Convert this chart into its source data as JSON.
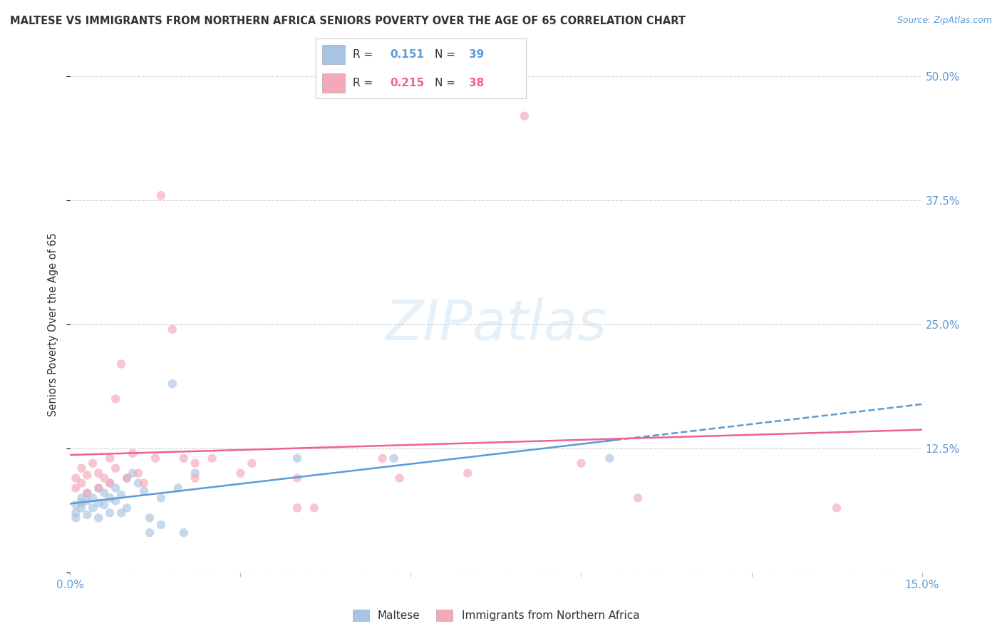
{
  "title": "MALTESE VS IMMIGRANTS FROM NORTHERN AFRICA SENIORS POVERTY OVER THE AGE OF 65 CORRELATION CHART",
  "source": "Source: ZipAtlas.com",
  "ylabel": "Seniors Poverty Over the Age of 65",
  "xlim": [
    0.0,
    0.15
  ],
  "ylim": [
    0.0,
    0.5
  ],
  "xticks": [
    0.0,
    0.03,
    0.06,
    0.09,
    0.12,
    0.15
  ],
  "xticklabels": [
    "0.0%",
    "",
    "",
    "",
    "",
    "15.0%"
  ],
  "yticks_right": [
    0.0,
    0.125,
    0.25,
    0.375,
    0.5
  ],
  "yticklabels_right": [
    "",
    "12.5%",
    "25.0%",
    "37.5%",
    "50.0%"
  ],
  "bottom_legend": [
    "Maltese",
    "Immigrants from Northern Africa"
  ],
  "bottom_legend_colors": [
    "#a8c4e0",
    "#f4a8b8"
  ],
  "watermark": "ZIPatlas",
  "background_color": "#ffffff",
  "grid_color": "#d0d0d0",
  "maltese_scatter": [
    [
      0.001,
      0.06
    ],
    [
      0.001,
      0.068
    ],
    [
      0.001,
      0.055
    ],
    [
      0.002,
      0.075
    ],
    [
      0.002,
      0.07
    ],
    [
      0.002,
      0.065
    ],
    [
      0.003,
      0.08
    ],
    [
      0.003,
      0.072
    ],
    [
      0.003,
      0.058
    ],
    [
      0.004,
      0.075
    ],
    [
      0.004,
      0.065
    ],
    [
      0.005,
      0.085
    ],
    [
      0.005,
      0.07
    ],
    [
      0.005,
      0.055
    ],
    [
      0.006,
      0.08
    ],
    [
      0.006,
      0.068
    ],
    [
      0.007,
      0.09
    ],
    [
      0.007,
      0.075
    ],
    [
      0.007,
      0.06
    ],
    [
      0.008,
      0.085
    ],
    [
      0.008,
      0.072
    ],
    [
      0.009,
      0.078
    ],
    [
      0.009,
      0.06
    ],
    [
      0.01,
      0.095
    ],
    [
      0.01,
      0.065
    ],
    [
      0.011,
      0.1
    ],
    [
      0.012,
      0.09
    ],
    [
      0.013,
      0.082
    ],
    [
      0.014,
      0.04
    ],
    [
      0.014,
      0.055
    ],
    [
      0.016,
      0.075
    ],
    [
      0.016,
      0.048
    ],
    [
      0.018,
      0.19
    ],
    [
      0.019,
      0.085
    ],
    [
      0.02,
      0.04
    ],
    [
      0.022,
      0.1
    ],
    [
      0.04,
      0.115
    ],
    [
      0.057,
      0.115
    ],
    [
      0.095,
      0.115
    ]
  ],
  "northern_africa_scatter": [
    [
      0.001,
      0.095
    ],
    [
      0.001,
      0.085
    ],
    [
      0.002,
      0.105
    ],
    [
      0.002,
      0.09
    ],
    [
      0.003,
      0.098
    ],
    [
      0.003,
      0.08
    ],
    [
      0.004,
      0.11
    ],
    [
      0.005,
      0.1
    ],
    [
      0.005,
      0.085
    ],
    [
      0.006,
      0.095
    ],
    [
      0.007,
      0.115
    ],
    [
      0.007,
      0.09
    ],
    [
      0.008,
      0.175
    ],
    [
      0.008,
      0.105
    ],
    [
      0.009,
      0.21
    ],
    [
      0.01,
      0.095
    ],
    [
      0.011,
      0.12
    ],
    [
      0.012,
      0.1
    ],
    [
      0.013,
      0.09
    ],
    [
      0.015,
      0.115
    ],
    [
      0.016,
      0.38
    ],
    [
      0.018,
      0.245
    ],
    [
      0.02,
      0.115
    ],
    [
      0.022,
      0.11
    ],
    [
      0.022,
      0.095
    ],
    [
      0.025,
      0.115
    ],
    [
      0.03,
      0.1
    ],
    [
      0.032,
      0.11
    ],
    [
      0.04,
      0.095
    ],
    [
      0.04,
      0.065
    ],
    [
      0.043,
      0.065
    ],
    [
      0.055,
      0.115
    ],
    [
      0.058,
      0.095
    ],
    [
      0.07,
      0.1
    ],
    [
      0.08,
      0.46
    ],
    [
      0.09,
      0.11
    ],
    [
      0.1,
      0.075
    ],
    [
      0.135,
      0.065
    ]
  ],
  "maltese_line_color": "#5b9bd5",
  "maltese_line_style_solid": "-",
  "maltese_line_style_dashed": "--",
  "northern_africa_line_color": "#f06090",
  "northern_africa_line_style": "-",
  "maltese_dot_color": "#a8c4e0",
  "northern_africa_dot_color": "#f4a8b8",
  "dot_size": 80,
  "dot_alpha": 0.65,
  "title_color": "#333333",
  "axis_color": "#5b9bd5",
  "right_axis_color": "#5b9bd5",
  "legend_r1_val": "0.151",
  "legend_r1_n": "39",
  "legend_r2_val": "0.215",
  "legend_r2_n": "38",
  "legend_r1_color": "#5b9bd5",
  "legend_r2_color": "#f06090",
  "legend_n1_color": "#5b9bd5",
  "legend_n2_color": "#f06090"
}
